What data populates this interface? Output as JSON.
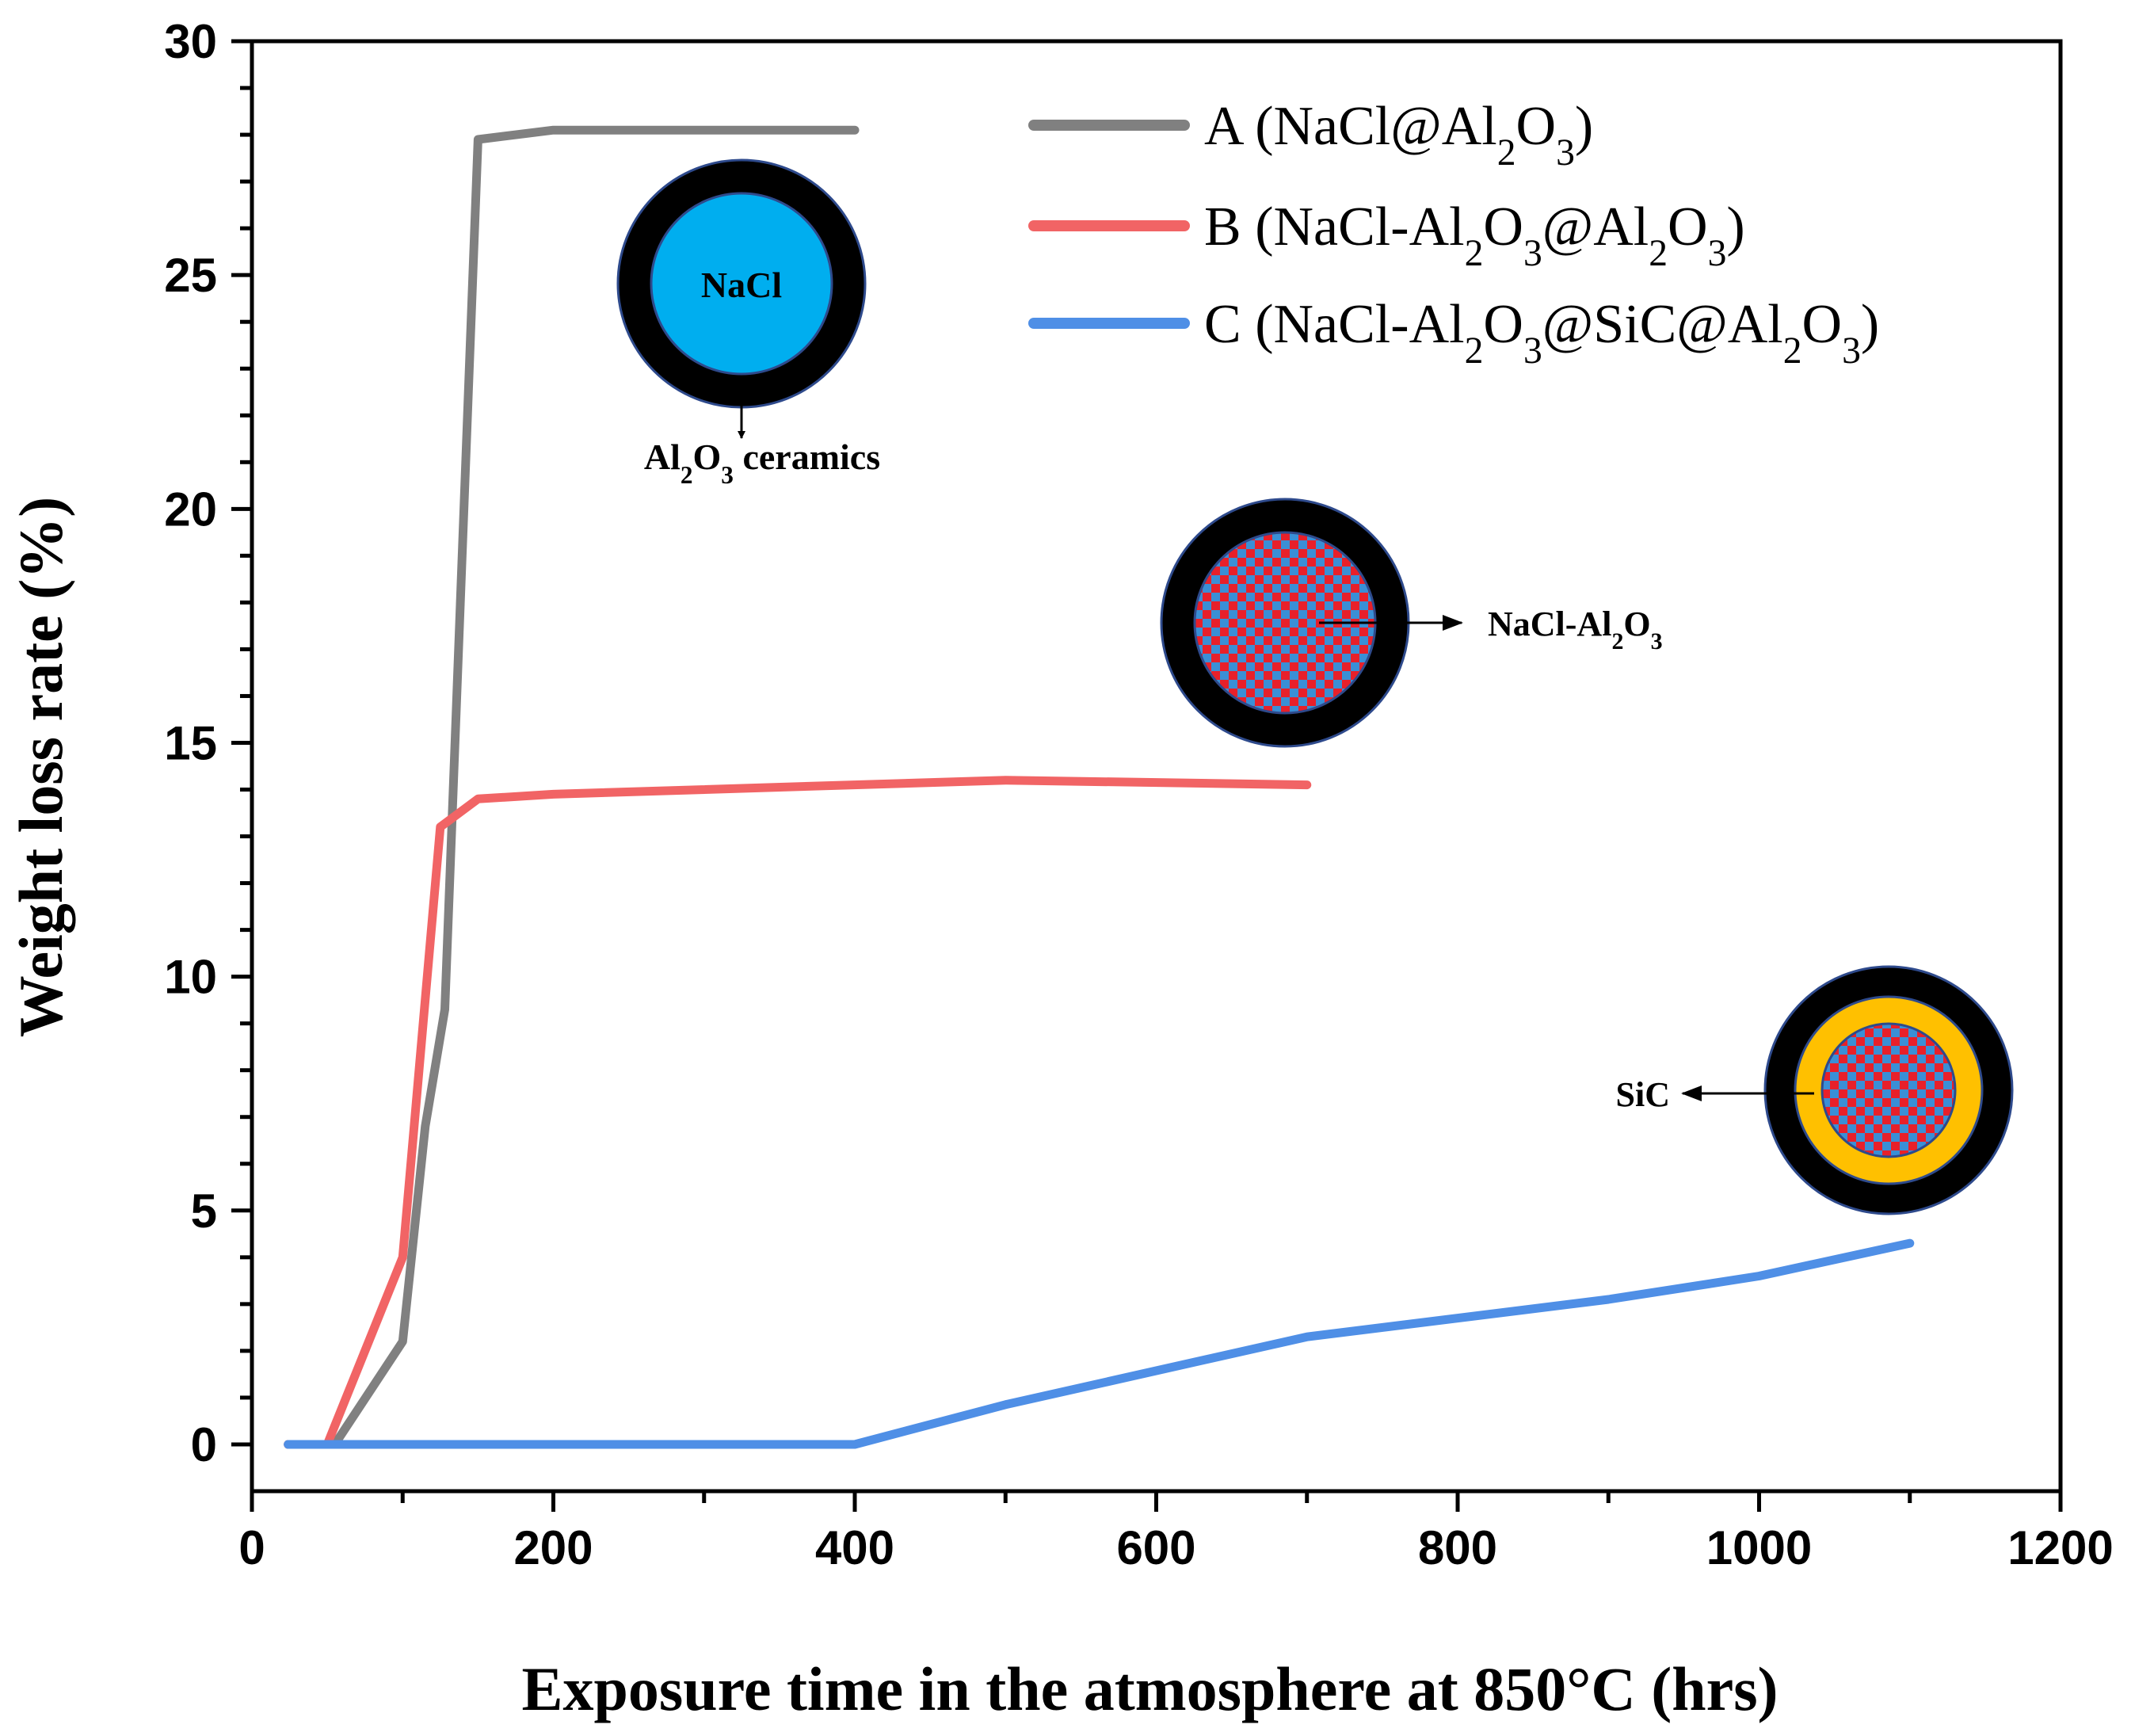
{
  "chart_data": {
    "type": "line",
    "xlabel": "Exposure time in the atmosphere at 850°C (hrs)",
    "ylabel": "Weight loss rate (%)",
    "xlim": [
      0,
      1200
    ],
    "ylim": [
      -1,
      30
    ],
    "xticks": [
      0,
      200,
      400,
      600,
      800,
      1000,
      1200
    ],
    "yticks": [
      0,
      5,
      10,
      15,
      20,
      25,
      30
    ],
    "x_minor_step": 100,
    "y_minor_step": 1,
    "grid": false,
    "legend_position": "top-right",
    "series": [
      {
        "name": "A (NaCl@Al2O3)",
        "legend_parts": [
          [
            "A (NaCl@Al",
            ""
          ],
          [
            "2",
            "sub"
          ],
          [
            "O",
            ""
          ],
          [
            "3",
            "sub"
          ],
          [
            ")",
            ""
          ]
        ],
        "color": "#808080",
        "x": [
          24,
          55,
          100,
          115,
          128,
          150,
          200,
          400
        ],
        "y": [
          0,
          0,
          2.2,
          6.8,
          9.3,
          27.9,
          28.1,
          28.1
        ]
      },
      {
        "name": "B (NaCl-Al2O3@Al2O3)",
        "legend_parts": [
          [
            "B (NaCl-Al",
            ""
          ],
          [
            "2",
            "sub"
          ],
          [
            "O",
            ""
          ],
          [
            "3",
            "sub"
          ],
          [
            "@Al",
            ""
          ],
          [
            "2",
            "sub"
          ],
          [
            "O",
            ""
          ],
          [
            "3",
            "sub"
          ],
          [
            ")",
            ""
          ]
        ],
        "color": "#f16465",
        "x": [
          24,
          50,
          100,
          125,
          150,
          200,
          500,
          700
        ],
        "y": [
          0,
          0,
          4.0,
          13.2,
          13.8,
          13.9,
          14.2,
          14.1
        ]
      },
      {
        "name": "C (NaCl-Al2O3@SiC@Al2O3)",
        "legend_parts": [
          [
            "C (NaCl-Al",
            ""
          ],
          [
            "2",
            "sub"
          ],
          [
            "O",
            ""
          ],
          [
            "3",
            "sub"
          ],
          [
            "@SiC@Al",
            ""
          ],
          [
            "2",
            "sub"
          ],
          [
            "O",
            ""
          ],
          [
            "3",
            "sub"
          ],
          [
            ")",
            ""
          ]
        ],
        "color": "#4f8fe6",
        "x": [
          24,
          400,
          500,
          700,
          900,
          1000,
          1100
        ],
        "y": [
          0,
          0,
          0.85,
          2.3,
          3.1,
          3.6,
          4.3
        ]
      }
    ],
    "annotations": [
      {
        "name": "NaCl",
        "parts": [
          [
            "NaCl",
            ""
          ]
        ]
      },
      {
        "name": "Al2O3 ceramics",
        "parts": [
          [
            "Al",
            ""
          ],
          [
            "2",
            "sub"
          ],
          [
            "O",
            ""
          ],
          [
            "3",
            "sub"
          ],
          [
            " ceramics",
            ""
          ]
        ]
      },
      {
        "name": "NaCl-Al2O3",
        "parts": [
          [
            "NaCl-Al",
            ""
          ],
          [
            "2",
            "sub"
          ],
          [
            "O",
            ""
          ],
          [
            "3",
            "sub"
          ]
        ]
      },
      {
        "name": "SiC",
        "parts": [
          [
            "SiC",
            ""
          ]
        ]
      }
    ],
    "colors": {
      "shell": "#000000",
      "nacl_core": "#00aeef",
      "checker_red": "#e8202a",
      "checker_blue": "#3a8fd6",
      "sic_layer": "#ffc000",
      "outline": "#2e4a8c"
    }
  }
}
